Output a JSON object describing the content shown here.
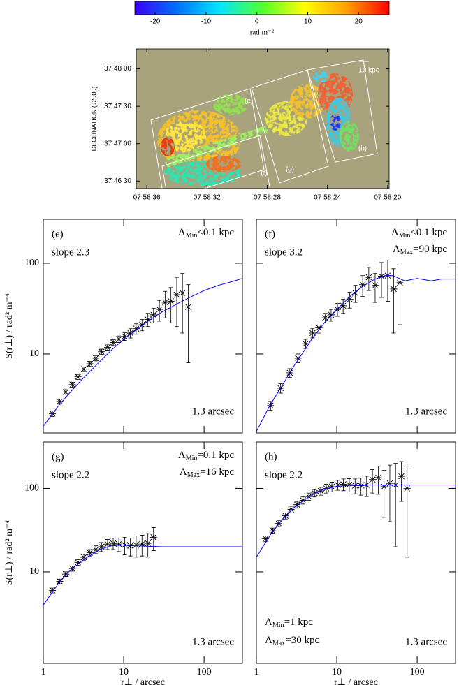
{
  "chart_data": [
    {
      "type": "colorbar",
      "xlim": [
        -24,
        26
      ],
      "xticks": [
        -20,
        -10,
        0,
        10,
        20
      ],
      "xlabel": "rad m⁻²",
      "colors": [
        "#3a00ff",
        "#0070ff",
        "#00e8ff",
        "#50ff30",
        "#ffff00",
        "#ffa000",
        "#ff0000"
      ]
    },
    {
      "type": "image",
      "xlim": [
        36.7,
        19.9
      ],
      "xticks": [
        {
          "value": 36,
          "label": "07 58 36"
        },
        {
          "value": 32,
          "label": "07 58 32"
        },
        {
          "value": 28,
          "label": "07 58 28"
        },
        {
          "value": 24,
          "label": "07 58 24"
        },
        {
          "value": 20,
          "label": "07 58 20"
        }
      ],
      "ylim": [
        24,
        136
      ],
      "yticks": [
        {
          "value": 120,
          "label": "37 48 00"
        },
        {
          "value": 90,
          "label": "37 47 30"
        },
        {
          "value": 60,
          "label": "37 47 00"
        },
        {
          "value": 30,
          "label": "37 46 30"
        }
      ],
      "ylabel": "DECLINATION (J2000)",
      "regions": [
        "(e)",
        "(f)",
        "(g)",
        "(h)"
      ],
      "scale_bar": "10 kpc",
      "background": "#a9a37d"
    },
    {
      "type": "scatter",
      "log_x": true,
      "log_y": true,
      "xlim": [
        1,
        300
      ],
      "ylim": [
        1.35,
        305
      ],
      "xticks": [
        1,
        10,
        100
      ],
      "yticks": [
        10,
        100
      ],
      "show_xtick_labels": false,
      "show_ytick_labels": true,
      "ylabel": "S(r⊥) / rad² m⁻⁴",
      "label": "(e)",
      "slope": "slope 2.3",
      "limits_corner": "upper right",
      "limits": [
        {
          "symbol": "Λ",
          "subscript": "Min",
          "text": "<0.1 kpc"
        }
      ],
      "resolution": "1.3 arcsec",
      "series": [
        {
          "color": "#000000",
          "x": [
            1.3,
            1.6,
            1.9,
            2.3,
            2.7,
            3.2,
            3.8,
            4.5,
            5.3,
            6.3,
            7.4,
            8.7,
            10.3,
            12.1,
            14.3,
            16.9,
            20,
            23.5,
            27.8,
            32.8,
            38.7,
            45.7,
            53.9,
            63.6
          ],
          "values": [
            2.2,
            3.0,
            3.8,
            4.6,
            5.6,
            6.8,
            7.8,
            9.0,
            10.6,
            11.8,
            13.4,
            14.6,
            15.6,
            17,
            19,
            21,
            24,
            27,
            31,
            37,
            38,
            45,
            47,
            33
          ],
          "errors": [
            0.15,
            0.2,
            0.25,
            0.3,
            0.35,
            0.4,
            0.5,
            0.6,
            0.7,
            0.8,
            1,
            1.2,
            1.5,
            2,
            2.5,
            3,
            4,
            5,
            8,
            12,
            16,
            25,
            30,
            25
          ]
        },
        {
          "color": "#0000ff",
          "style": "line",
          "x": [
            1,
            1.5,
            2,
            3,
            5,
            7,
            10,
            15,
            20,
            30,
            50,
            70,
            100,
            150,
            200,
            300
          ],
          "values": [
            1.6,
            2.6,
            3.5,
            5.2,
            8.2,
            11,
            14.5,
            19,
            23,
            29,
            37,
            43,
            50,
            57,
            61,
            68
          ]
        }
      ]
    },
    {
      "type": "scatter",
      "log_x": true,
      "log_y": true,
      "xlim": [
        1,
        300
      ],
      "ylim": [
        1.35,
        305
      ],
      "xticks": [
        1,
        10,
        100
      ],
      "yticks": [
        10,
        100
      ],
      "show_xtick_labels": false,
      "show_ytick_labels": false,
      "label": "(f)",
      "slope": "slope 3.2",
      "limits_corner": "upper right",
      "limits": [
        {
          "symbol": "Λ",
          "subscript": "Min",
          "text": "<0.1 kpc"
        },
        {
          "symbol": "Λ",
          "subscript": "Max",
          "text": "=90 kpc"
        }
      ],
      "resolution": "1.3 arcsec",
      "series": [
        {
          "color": "#000000",
          "x": [
            1.5,
            2.0,
            2.6,
            3.3,
            4.1,
            5.0,
            6.0,
            7.2,
            8.5,
            10.2,
            12,
            14.5,
            17,
            21,
            25,
            30,
            36,
            43,
            51,
            61
          ],
          "values": [
            2.7,
            4.2,
            6.2,
            9,
            13,
            17,
            19.5,
            25,
            27,
            31,
            34,
            40,
            47,
            58,
            70,
            57,
            72,
            73,
            52,
            61
          ],
          "errors": [
            0.3,
            0.5,
            0.7,
            1,
            1.5,
            2,
            2.5,
            3,
            4,
            5,
            6,
            8,
            10,
            15,
            20,
            20,
            30,
            35,
            35,
            40
          ]
        },
        {
          "color": "#0000ff",
          "style": "line",
          "x": [
            1,
            1.5,
            2,
            3,
            5,
            7,
            10,
            15,
            20,
            30,
            40,
            50,
            70,
            100,
            150,
            200,
            300
          ],
          "values": [
            1.4,
            2.8,
            4.2,
            7.6,
            15,
            22,
            31,
            44,
            54,
            67,
            73,
            73,
            64,
            68,
            64,
            67,
            67
          ]
        }
      ]
    },
    {
      "type": "scatter",
      "log_x": true,
      "log_y": true,
      "xlim": [
        1,
        300
      ],
      "ylim": [
        0.8,
        360
      ],
      "xticks": [
        1,
        10,
        100
      ],
      "yticks": [
        10,
        100
      ],
      "show_xtick_labels": true,
      "show_ytick_labels": true,
      "ylabel": "S(r⊥) / rad² m⁻⁴",
      "xlabel": "r⊥ / arcsec",
      "label": "(g)",
      "slope": "slope 2.2",
      "limits_corner": "upper right",
      "limits": [
        {
          "symbol": "Λ",
          "subscript": "Min",
          "text": "=0.1 kpc"
        },
        {
          "symbol": "Λ",
          "subscript": "Max",
          "text": "=16 kpc"
        }
      ],
      "resolution": "1.3 arcsec",
      "series": [
        {
          "color": "#000000",
          "x": [
            1.3,
            1.6,
            1.9,
            2.3,
            2.7,
            3.2,
            3.8,
            4.5,
            5.3,
            6.3,
            7.4,
            8.7,
            10.3,
            12.1,
            14.3,
            16.9,
            20,
            23.5
          ],
          "values": [
            6,
            7.7,
            9.4,
            11,
            13,
            15,
            17,
            18.5,
            20,
            21.5,
            22,
            21.5,
            21,
            20.5,
            21,
            21.5,
            22,
            26
          ],
          "errors": [
            0.4,
            0.5,
            0.6,
            0.8,
            1,
            1.2,
            1.5,
            2,
            2.5,
            3,
            3.5,
            4,
            5,
            5,
            6,
            6,
            7,
            8
          ]
        },
        {
          "color": "#0000ff",
          "style": "line",
          "x": [
            1,
            1.5,
            2,
            3,
            5,
            7,
            10,
            15,
            20,
            30,
            50,
            100,
            300
          ],
          "values": [
            4,
            7,
            9.7,
            13.5,
            18.5,
            20.5,
            21,
            20.5,
            20.3,
            20,
            20,
            20,
            20
          ]
        }
      ]
    },
    {
      "type": "scatter",
      "log_x": true,
      "log_y": true,
      "xlim": [
        1,
        300
      ],
      "ylim": [
        0.8,
        360
      ],
      "xticks": [
        1,
        10,
        100
      ],
      "yticks": [
        10,
        100
      ],
      "show_xtick_labels": true,
      "show_ytick_labels": false,
      "xlabel": "r⊥ / arcsec",
      "label": "(h)",
      "slope": "slope 2.2",
      "limits_corner": "lower left",
      "limits": [
        {
          "symbol": "Λ",
          "subscript": "Min",
          "text": "=1 kpc"
        },
        {
          "symbol": "Λ",
          "subscript": "Max",
          "text": "=30 kpc"
        }
      ],
      "resolution": "1.3 arcsec",
      "series": [
        {
          "color": "#000000",
          "x": [
            1.3,
            1.6,
            1.9,
            2.3,
            2.7,
            3.2,
            3.8,
            4.5,
            5.3,
            6.3,
            7.4,
            8.7,
            10.3,
            12.1,
            14.3,
            16.9,
            20,
            23.5,
            27.8,
            32.8,
            38.7,
            45.7,
            53.9,
            63.6,
            75
          ],
          "values": [
            25,
            31,
            38,
            47,
            56,
            64,
            72,
            80,
            88,
            93,
            100,
            105,
            110,
            112,
            111,
            108,
            108,
            110,
            128,
            135,
            105,
            115,
            110,
            140,
            100
          ],
          "errors": [
            2,
            2.5,
            3,
            4,
            5,
            6,
            7,
            8,
            9,
            10,
            12,
            14,
            15,
            18,
            20,
            22,
            25,
            30,
            40,
            50,
            60,
            75,
            90,
            70,
            85
          ]
        },
        {
          "color": "#0000ff",
          "style": "line",
          "x": [
            1,
            1.5,
            2,
            3,
            5,
            7,
            10,
            15,
            20,
            30,
            50,
            100,
            300
          ],
          "values": [
            15,
            28,
            40,
            60,
            85,
            98,
            106,
            109,
            110,
            110,
            110,
            110,
            110
          ]
        }
      ]
    }
  ]
}
